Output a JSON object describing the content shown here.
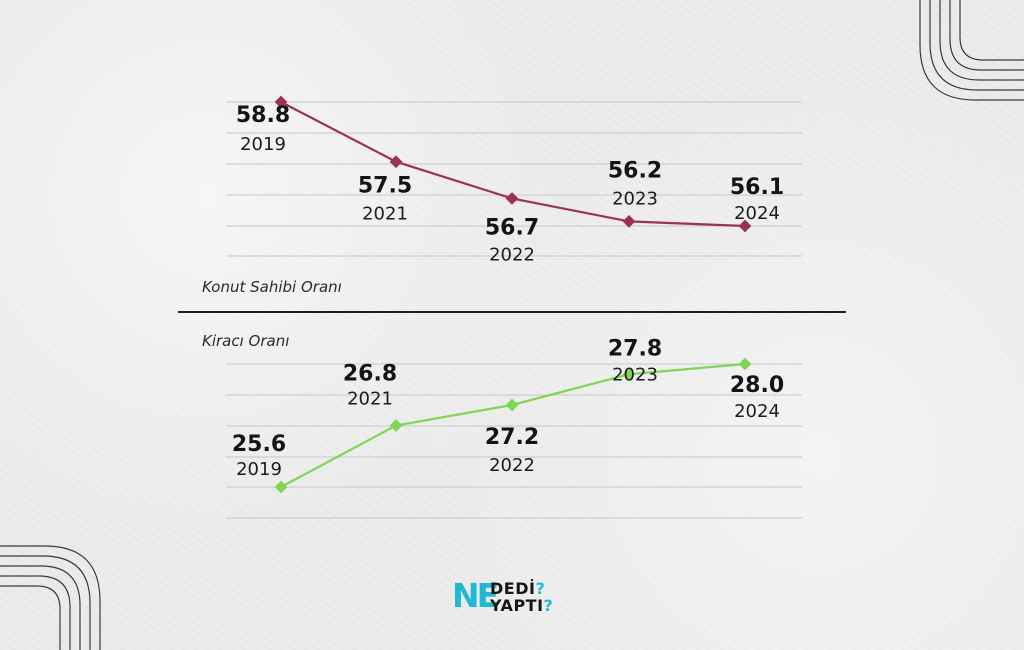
{
  "colors": {
    "owner_line": "#9b3156",
    "renter_line": "#7fd655",
    "grid": "#c7c7c7",
    "accent": "#22b8d4"
  },
  "labels": {
    "owner": "Konut Sahibi Oranı",
    "renter": "Kiracı Oranı"
  },
  "logo": {
    "ne": "NE",
    "line1": "DEDİ",
    "line2": "YAPTI",
    "q": "?"
  },
  "chart_data": [
    {
      "type": "line",
      "title": "Konut Sahibi Oranı",
      "categories": [
        "2019",
        "2021",
        "2022",
        "2023",
        "2024"
      ],
      "values": [
        58.8,
        57.5,
        56.7,
        56.2,
        56.1
      ],
      "value_labels": [
        "58.8",
        "57.5",
        "56.7",
        "56.2",
        "56.1"
      ],
      "ylim": [
        55.5,
        59.0
      ],
      "grid": true
    },
    {
      "type": "line",
      "title": "Kiracı Oranı",
      "categories": [
        "2019",
        "2021",
        "2022",
        "2023",
        "2024"
      ],
      "values": [
        25.6,
        26.8,
        27.2,
        27.8,
        28.0
      ],
      "value_labels": [
        "25.6",
        "26.8",
        "27.2",
        "27.8",
        "28.0"
      ],
      "ylim": [
        25.0,
        28.3
      ],
      "grid": true
    }
  ]
}
